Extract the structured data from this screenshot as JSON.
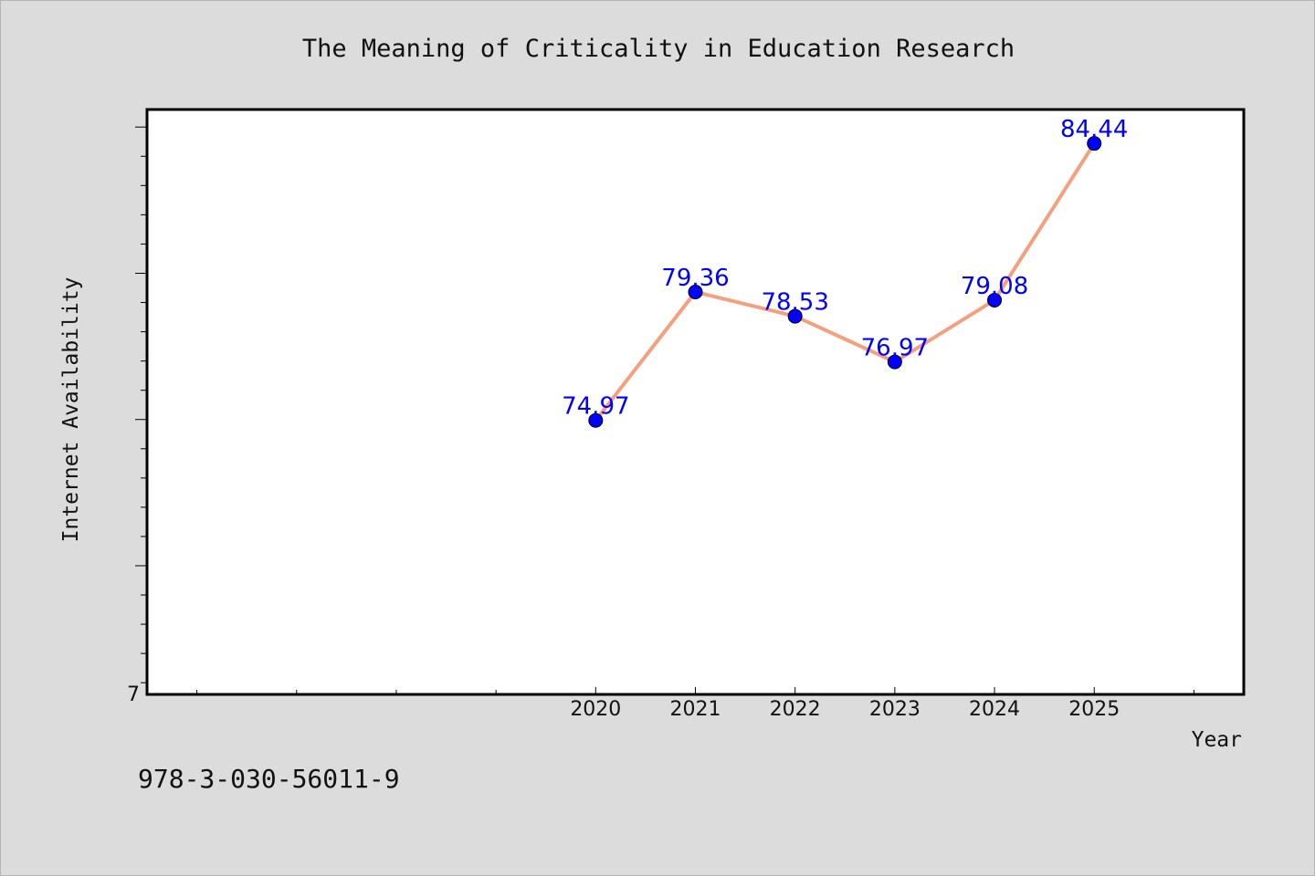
{
  "chart_data": {
    "type": "line",
    "title": "The Meaning of Criticality in Education Research",
    "xlabel": "Year",
    "ylabel": "Internet Availability",
    "x": [
      "2020",
      "2021",
      "2022",
      "2023",
      "2024",
      "2025"
    ],
    "series": [
      {
        "values": [
          74.97,
          79.36,
          78.53,
          76.97,
          79.08,
          84.44
        ],
        "labels": [
          "74.97",
          "79.36",
          "78.53",
          "76.97",
          "79.08",
          "84.44"
        ],
        "line_color": "#f4a07e",
        "marker_color": "#0000ff"
      }
    ],
    "ytick_labels": [
      "7"
    ],
    "ylim": [
      65.6,
      85.6
    ],
    "xlim": [
      2015.5,
      2026.5
    ],
    "grid": false,
    "legend": "none"
  },
  "footnote": "978-3-030-56011-9"
}
